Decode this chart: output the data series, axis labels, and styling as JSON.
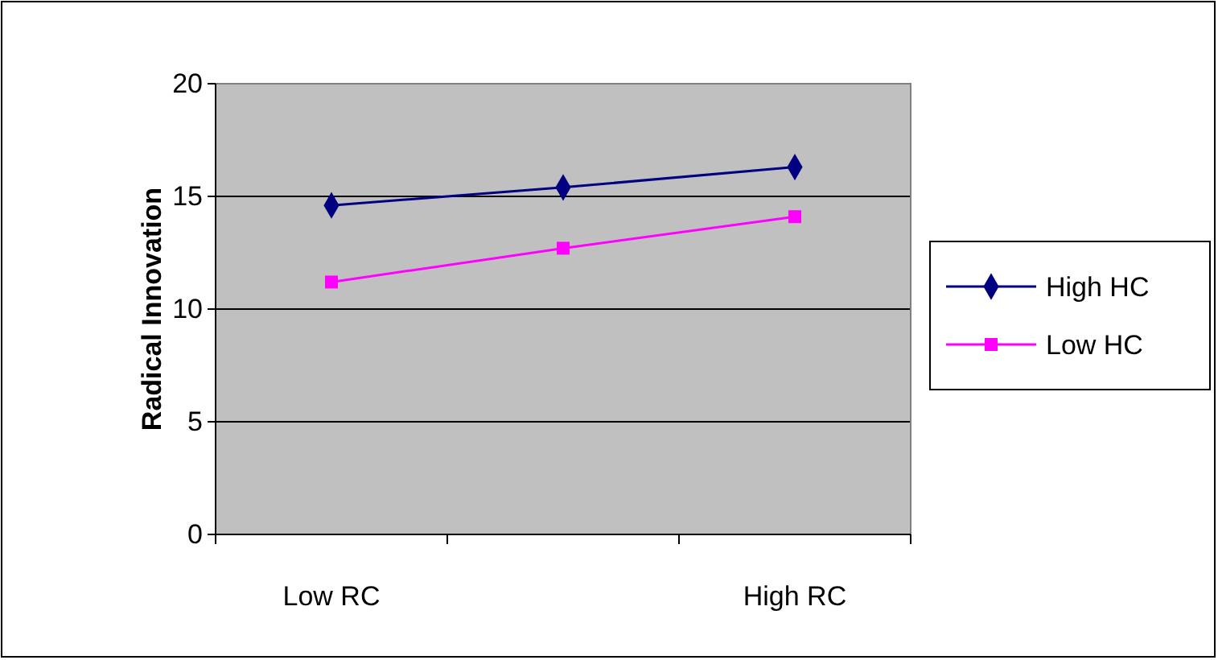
{
  "chart_data": {
    "type": "line",
    "ylabel": "Radical Innovation",
    "categories": [
      "Low RC",
      null,
      "High RC"
    ],
    "series": [
      {
        "name": "High HC",
        "color": "#000080",
        "marker": "diamond",
        "values": [
          14.6,
          15.4,
          16.3
        ]
      },
      {
        "name": "Low HC",
        "color": "#ff00ff",
        "marker": "square",
        "values": [
          11.2,
          12.7,
          14.1
        ]
      }
    ],
    "ylim": [
      0,
      20
    ],
    "yticks": [
      0,
      5,
      10,
      15,
      20
    ],
    "grid": "y",
    "legend": "right",
    "line_style": "solid"
  }
}
